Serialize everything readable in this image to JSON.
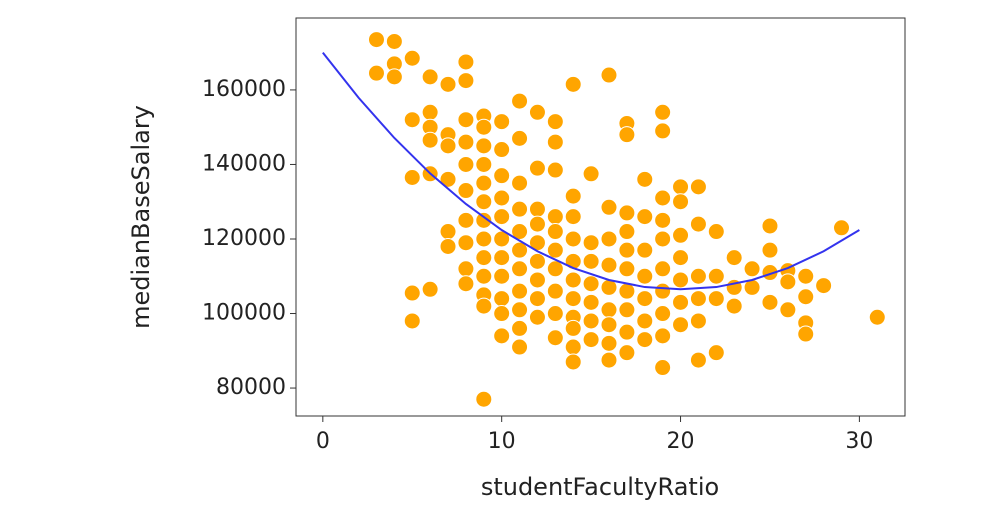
{
  "chart_data": {
    "type": "scatter",
    "xlabel": "studentFacultyRatio",
    "ylabel": "medianBaseSalary",
    "xlim": [
      -1.5,
      32.55
    ],
    "ylim": [
      72500,
      179300
    ],
    "xticks": [
      0,
      10,
      20,
      30
    ],
    "yticks": [
      80000,
      100000,
      120000,
      140000,
      160000
    ],
    "series": [
      {
        "type": "scatter",
        "color": "#ffa500",
        "x": [
          3,
          3,
          4,
          4,
          4,
          5,
          5,
          5,
          5,
          5,
          6,
          6,
          6,
          6,
          6,
          6,
          7,
          7,
          7,
          7,
          7,
          7,
          8,
          8,
          8,
          8,
          8,
          8,
          8,
          8,
          8,
          8,
          9,
          9,
          9,
          9,
          9,
          9,
          9,
          9,
          9,
          9,
          9,
          9,
          9,
          10,
          10,
          10,
          10,
          10,
          10,
          10,
          10,
          10,
          10,
          10,
          11,
          11,
          11,
          11,
          11,
          11,
          11,
          11,
          11,
          11,
          11,
          12,
          12,
          12,
          12,
          12,
          12,
          12,
          12,
          12,
          13,
          13,
          13,
          13,
          13,
          13,
          13,
          13,
          13,
          13,
          14,
          14,
          14,
          14,
          14,
          14,
          14,
          14,
          14,
          14,
          14,
          15,
          15,
          15,
          15,
          15,
          15,
          15,
          16,
          16,
          16,
          16,
          16,
          16,
          16,
          16,
          16,
          17,
          17,
          17,
          17,
          17,
          17,
          17,
          17,
          17,
          17,
          18,
          18,
          18,
          18,
          18,
          18,
          18,
          19,
          19,
          19,
          19,
          19,
          19,
          19,
          19,
          19,
          19,
          20,
          20,
          20,
          20,
          20,
          20,
          20,
          21,
          21,
          21,
          21,
          21,
          21,
          22,
          22,
          22,
          22,
          23,
          23,
          23,
          24,
          24,
          25,
          25,
          25,
          25,
          26,
          26,
          26,
          27,
          27,
          27,
          27,
          28,
          29,
          31
        ],
        "values": [
          173500,
          164500,
          173000,
          167000,
          163500,
          168500,
          152000,
          136500,
          105500,
          98000,
          163500,
          154000,
          150000,
          146500,
          137500,
          106500,
          161500,
          148000,
          145000,
          136000,
          122000,
          118000,
          167500,
          162500,
          152000,
          146000,
          140000,
          133000,
          125000,
          119000,
          112000,
          108000,
          153000,
          150000,
          145000,
          140000,
          135000,
          130000,
          125000,
          120000,
          115000,
          110000,
          105000,
          102000,
          77000,
          151500,
          144000,
          137000,
          131000,
          126000,
          120000,
          115000,
          110000,
          104000,
          100000,
          94000,
          157000,
          147000,
          135000,
          128000,
          122000,
          117000,
          112000,
          106000,
          101000,
          96000,
          91000,
          154000,
          139000,
          128000,
          124000,
          119000,
          114000,
          109000,
          104000,
          99000,
          151500,
          146000,
          138500,
          126000,
          122000,
          117000,
          112000,
          106000,
          100000,
          93500,
          161500,
          131500,
          126000,
          120000,
          114000,
          109000,
          104000,
          99000,
          96000,
          91000,
          87000,
          137500,
          119000,
          114000,
          108000,
          103000,
          98000,
          93000,
          164000,
          128500,
          120000,
          113000,
          107000,
          101000,
          97000,
          92000,
          87500,
          151000,
          148000,
          127000,
          122000,
          117000,
          112000,
          106000,
          101000,
          95000,
          89500,
          136000,
          126000,
          117000,
          110000,
          104000,
          98000,
          93000,
          154000,
          149000,
          131000,
          125000,
          120000,
          112000,
          106000,
          100000,
          94000,
          85500,
          134000,
          130000,
          121000,
          115000,
          109000,
          103000,
          97000,
          134000,
          124000,
          110000,
          104000,
          98000,
          87500,
          122000,
          110000,
          104000,
          89500,
          115000,
          107000,
          102000,
          112000,
          107000,
          123500,
          117000,
          111000,
          103000,
          111500,
          108500,
          101000,
          110000,
          104500,
          97500,
          94500,
          107500,
          123000,
          99000
        ]
      },
      {
        "type": "line",
        "color": "#3333ee",
        "x": [
          0,
          2,
          4,
          6,
          8,
          10,
          12,
          14,
          16,
          18,
          20,
          22,
          24,
          26,
          28,
          30
        ],
        "values": [
          170000,
          157900,
          147100,
          137600,
          129400,
          122400,
          116700,
          112200,
          109000,
          107100,
          106500,
          107100,
          109000,
          112200,
          116700,
          122400
        ]
      }
    ]
  }
}
